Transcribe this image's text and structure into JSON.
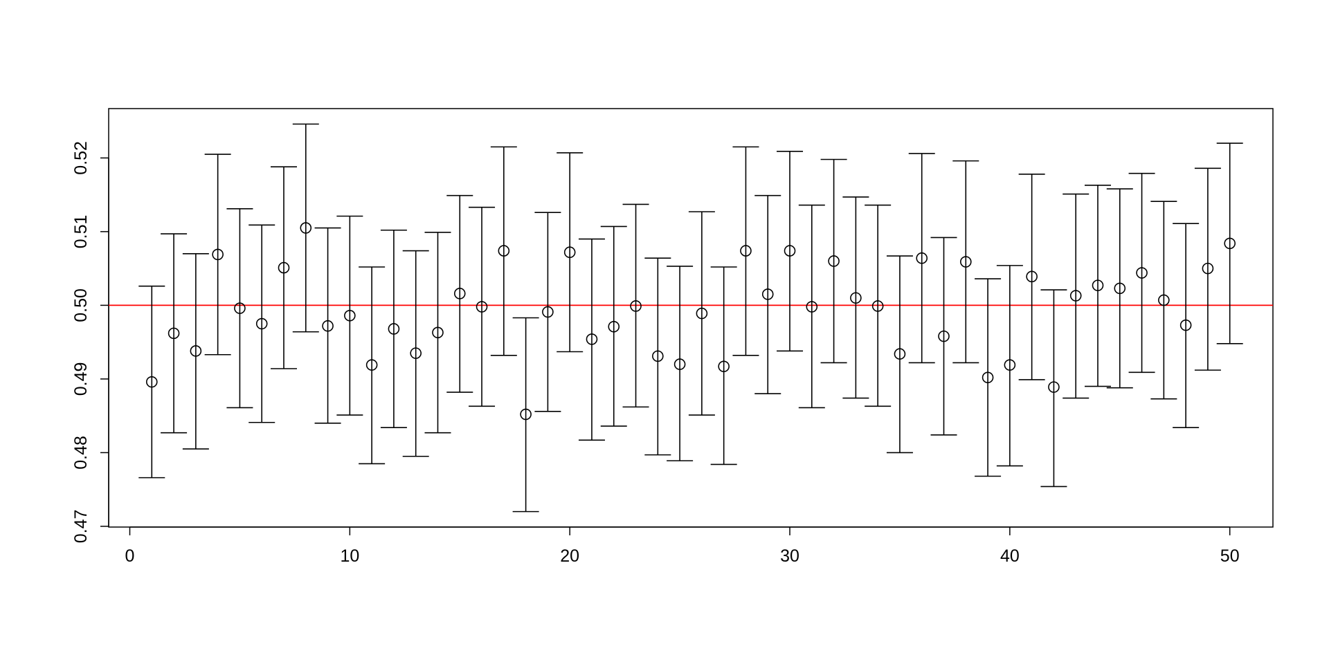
{
  "chart_data": {
    "type": "scatter",
    "title": "",
    "xlabel": "",
    "ylabel": "",
    "x": [
      1,
      2,
      3,
      4,
      5,
      6,
      7,
      8,
      9,
      10,
      11,
      12,
      13,
      14,
      15,
      16,
      17,
      18,
      19,
      20,
      21,
      22,
      23,
      24,
      25,
      26,
      27,
      28,
      29,
      30,
      31,
      32,
      33,
      34,
      35,
      36,
      37,
      38,
      39,
      40,
      41,
      42,
      43,
      44,
      45,
      46,
      47,
      48,
      49,
      50
    ],
    "estimate": [
      0.4896,
      0.4962,
      0.4938,
      0.5069,
      0.4996,
      0.4975,
      0.5051,
      0.5105,
      0.4972,
      0.4986,
      0.4919,
      0.4968,
      0.4935,
      0.4963,
      0.5016,
      0.4998,
      0.5074,
      0.4852,
      0.4991,
      0.5072,
      0.4954,
      0.4971,
      0.4999,
      0.4931,
      0.492,
      0.4989,
      0.4917,
      0.5074,
      0.5015,
      0.5074,
      0.4998,
      0.506,
      0.501,
      0.4999,
      0.4934,
      0.5064,
      0.4958,
      0.5059,
      0.4902,
      0.4919,
      0.5039,
      0.4889,
      0.5013,
      0.5027,
      0.5023,
      0.5044,
      0.5007,
      0.4973,
      0.505,
      0.5084
    ],
    "upper": [
      0.5026,
      0.5097,
      0.507,
      0.5205,
      0.5131,
      0.5109,
      0.5188,
      0.5246,
      0.5105,
      0.5121,
      0.5052,
      0.5102,
      0.5074,
      0.5099,
      0.5149,
      0.5133,
      0.5215,
      0.4983,
      0.5126,
      0.5207,
      0.509,
      0.5107,
      0.5137,
      0.5064,
      0.5053,
      0.5127,
      0.5052,
      0.5215,
      0.5149,
      0.5209,
      0.5136,
      0.5198,
      0.5147,
      0.5136,
      0.5067,
      0.5206,
      0.5092,
      0.5196,
      0.5036,
      0.5054,
      0.5178,
      0.5021,
      0.5151,
      0.5163,
      0.5158,
      0.5179,
      0.5141,
      0.5111,
      0.5186,
      0.522
    ],
    "lower": [
      0.4766,
      0.4827,
      0.4805,
      0.4933,
      0.4861,
      0.4841,
      0.4914,
      0.4964,
      0.484,
      0.4851,
      0.4785,
      0.4834,
      0.4795,
      0.4827,
      0.4882,
      0.4863,
      0.4932,
      0.472,
      0.4856,
      0.4937,
      0.4817,
      0.4836,
      0.4862,
      0.4797,
      0.4789,
      0.4851,
      0.4784,
      0.4932,
      0.488,
      0.4938,
      0.4861,
      0.4922,
      0.4874,
      0.4863,
      0.48,
      0.4922,
      0.4824,
      0.4922,
      0.4768,
      0.4782,
      0.4899,
      0.4754,
      0.4874,
      0.489,
      0.4888,
      0.4909,
      0.4873,
      0.4834,
      0.4912,
      0.4948
    ],
    "reference_line": {
      "y": 0.5,
      "color": "#ff0000"
    },
    "xlim": [
      -0.96,
      51.96
    ],
    "ylim": [
      0.4699,
      0.5267
    ],
    "xticks": [
      0,
      10,
      20,
      30,
      40,
      50
    ],
    "xtick_labels": [
      "0",
      "10",
      "20",
      "30",
      "40",
      "50"
    ],
    "yticks": [
      0.47,
      0.48,
      0.49,
      0.5,
      0.51,
      0.52
    ],
    "ytick_labels": [
      "0.47",
      "0.48",
      "0.49",
      "0.50",
      "0.51",
      "0.52"
    ],
    "grid": false,
    "marker": "open-circle",
    "point_color": "#000000"
  }
}
